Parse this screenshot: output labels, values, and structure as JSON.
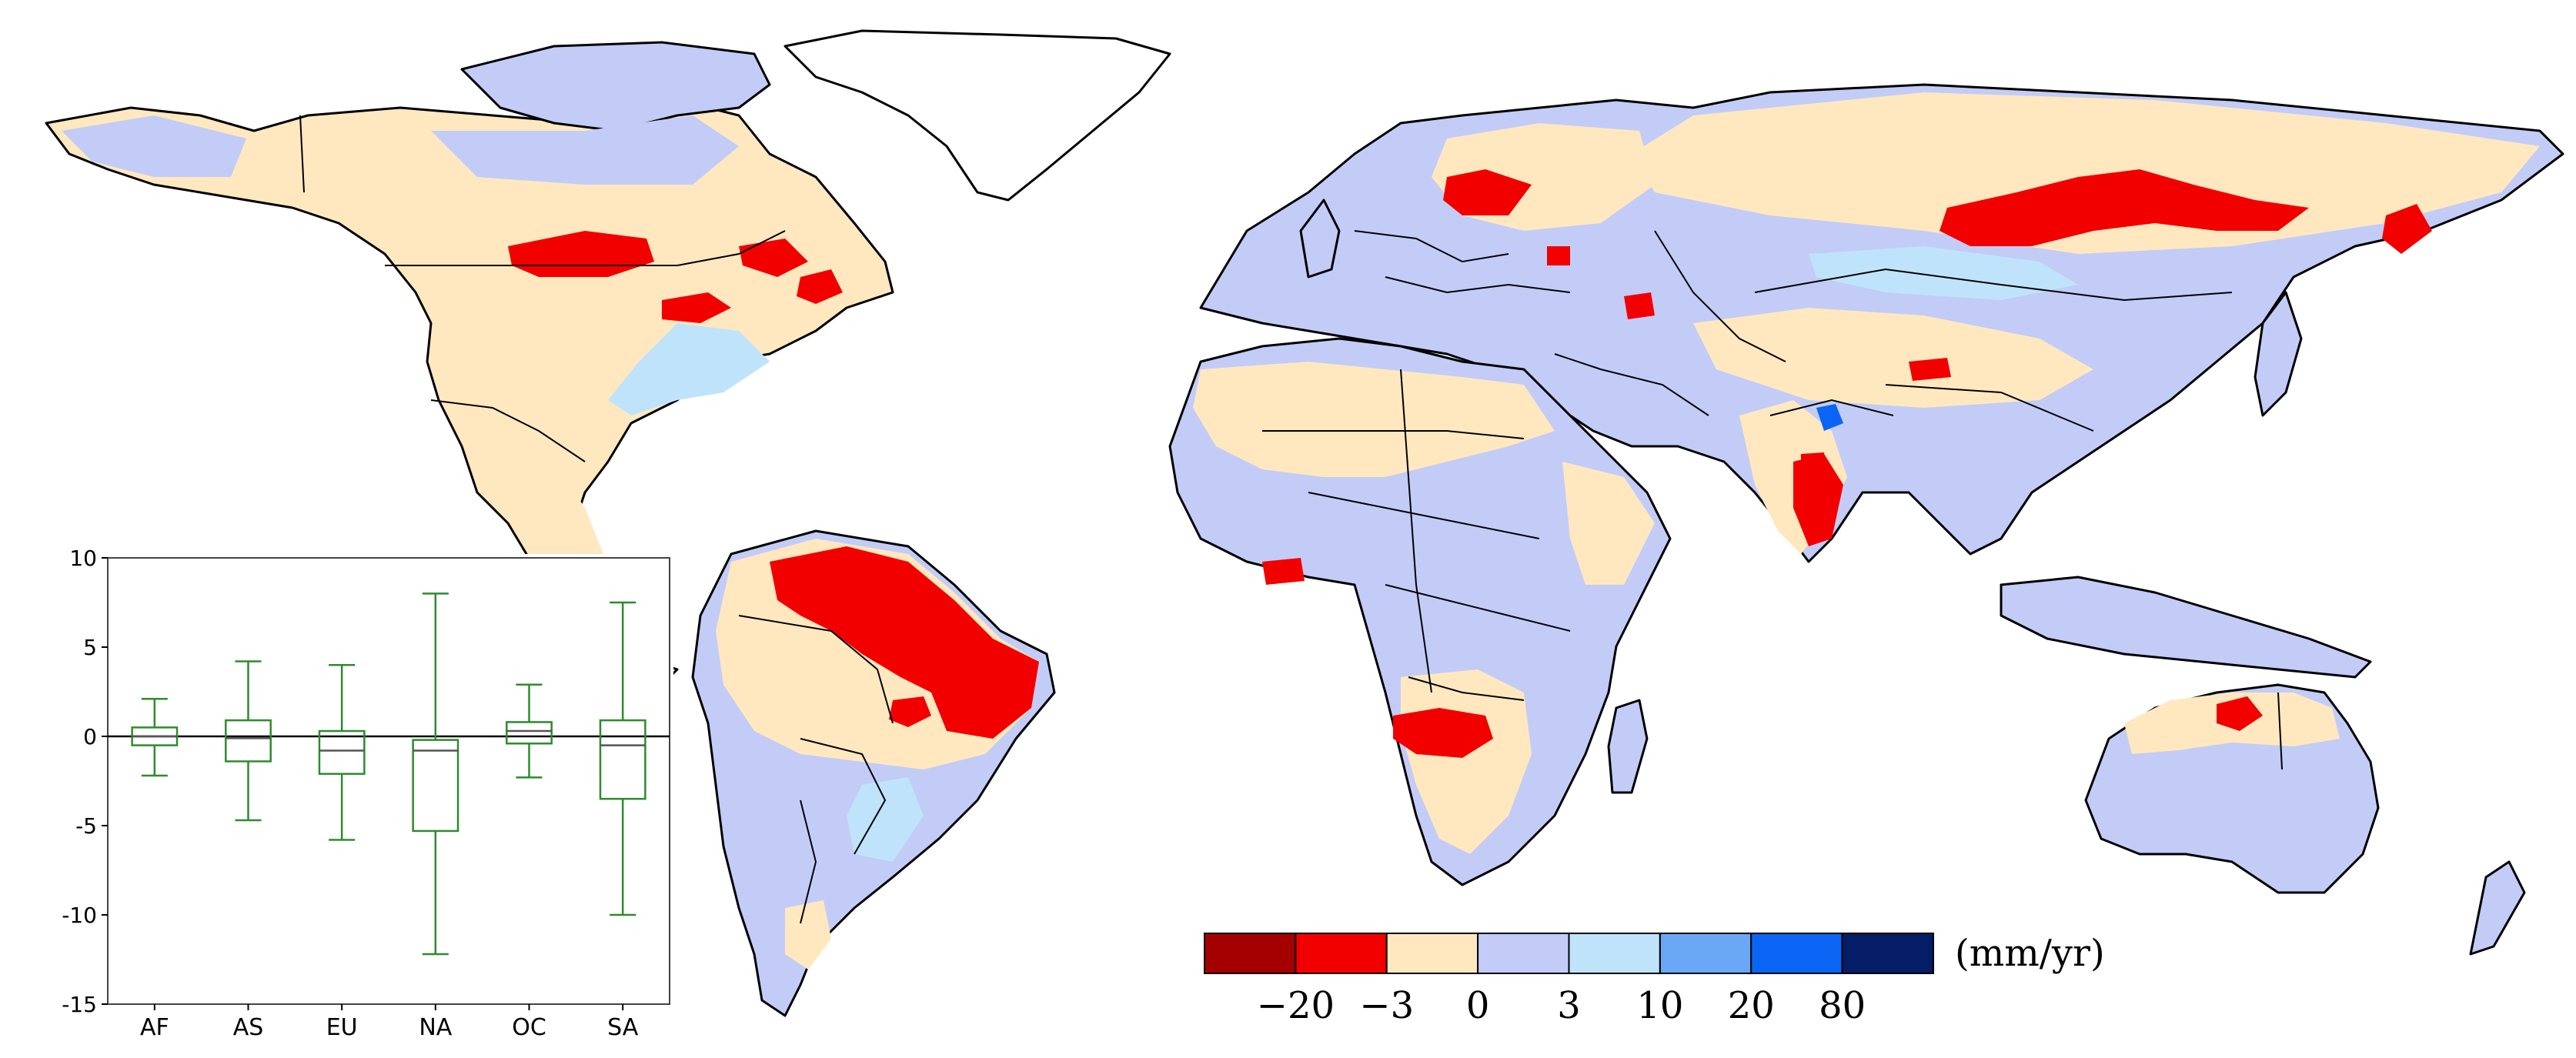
{
  "map": {
    "colors": {
      "ocean": "#ffffff",
      "land_neutral_neg": "#ffe8c0",
      "land_pos_small": "#c2ccf7",
      "land_pos_mid": "#bfe3fb",
      "pos_high": "#6aa8f5",
      "pos_very_high": "#0a65f5",
      "neg_mid": "#f20000",
      "neg_high": "#a50000",
      "border": "#000000"
    }
  },
  "colorbar": {
    "unit": "(mm/yr)",
    "tick_labels": [
      "−20",
      "−3",
      "0",
      "3",
      "10",
      "20",
      "80"
    ],
    "bins": [
      {
        "color": "#a50000"
      },
      {
        "color": "#f20000"
      },
      {
        "color": "#ffe8c0"
      },
      {
        "color": "#c2ccf7"
      },
      {
        "color": "#bfe3fb"
      },
      {
        "color": "#6aa8f5"
      },
      {
        "color": "#0a65f5"
      },
      {
        "color": "#041d66"
      }
    ]
  },
  "chart_data": {
    "type": "box",
    "categories": [
      "AF",
      "AS",
      "EU",
      "NA",
      "OC",
      "SA"
    ],
    "ylim": [
      -15,
      10
    ],
    "yticks": [
      10,
      5,
      0,
      -5,
      -10,
      -15
    ],
    "box_color": "#2e8b2e",
    "boxes": [
      {
        "min": -2.2,
        "q1": -0.5,
        "median": 0.0,
        "q3": 0.5,
        "max": 2.1
      },
      {
        "min": -4.7,
        "q1": -1.4,
        "median": -0.1,
        "q3": 0.9,
        "max": 4.2
      },
      {
        "min": -5.8,
        "q1": -2.1,
        "median": -0.8,
        "q3": 0.3,
        "max": 4.0
      },
      {
        "min": -12.2,
        "q1": -5.3,
        "median": -0.8,
        "q3": -0.2,
        "max": 8.0
      },
      {
        "min": -2.3,
        "q1": -0.4,
        "median": 0.3,
        "q3": 0.8,
        "max": 2.9
      },
      {
        "min": -10.0,
        "q1": -3.5,
        "median": -0.5,
        "q3": 0.9,
        "max": 7.5
      }
    ]
  }
}
